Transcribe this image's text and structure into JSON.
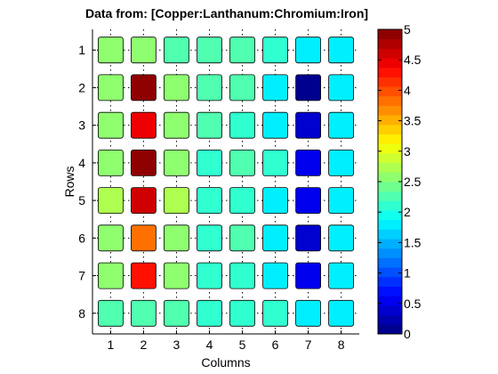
{
  "chart_data": {
    "type": "heatmap",
    "title": "Data from: [Copper:Lanthanum:Chromium:Iron]",
    "xlabel": "Columns",
    "ylabel": "Rows",
    "x_ticks": [
      "1",
      "2",
      "3",
      "4",
      "5",
      "6",
      "7",
      "8"
    ],
    "y_ticks": [
      "1",
      "2",
      "3",
      "4",
      "5",
      "6",
      "7",
      "8"
    ],
    "rows": 8,
    "cols": 8,
    "values": [
      [
        2.55,
        2.55,
        2.25,
        2.25,
        2.25,
        2.15,
        1.85,
        1.85
      ],
      [
        2.55,
        5.0,
        2.6,
        2.25,
        2.25,
        1.85,
        0.1,
        1.85
      ],
      [
        2.65,
        4.45,
        2.65,
        2.25,
        2.15,
        1.85,
        0.35,
        1.85
      ],
      [
        2.65,
        4.95,
        2.6,
        2.15,
        2.25,
        2.15,
        0.55,
        1.85
      ],
      [
        2.7,
        4.6,
        2.7,
        2.15,
        2.15,
        1.85,
        0.55,
        1.85
      ],
      [
        2.6,
        3.85,
        2.6,
        2.15,
        2.25,
        1.85,
        0.35,
        1.85
      ],
      [
        2.6,
        4.3,
        2.6,
        2.15,
        2.15,
        1.85,
        0.55,
        1.85
      ],
      [
        2.25,
        2.25,
        2.25,
        2.15,
        2.15,
        2.15,
        1.85,
        1.85
      ]
    ],
    "colorbar": {
      "min": 0,
      "max": 5,
      "steps": 32,
      "ticks": [
        "0",
        "0.5",
        "1",
        "1.5",
        "2",
        "2.5",
        "3",
        "3.5",
        "4",
        "4.5",
        "5"
      ]
    },
    "grid": true
  }
}
